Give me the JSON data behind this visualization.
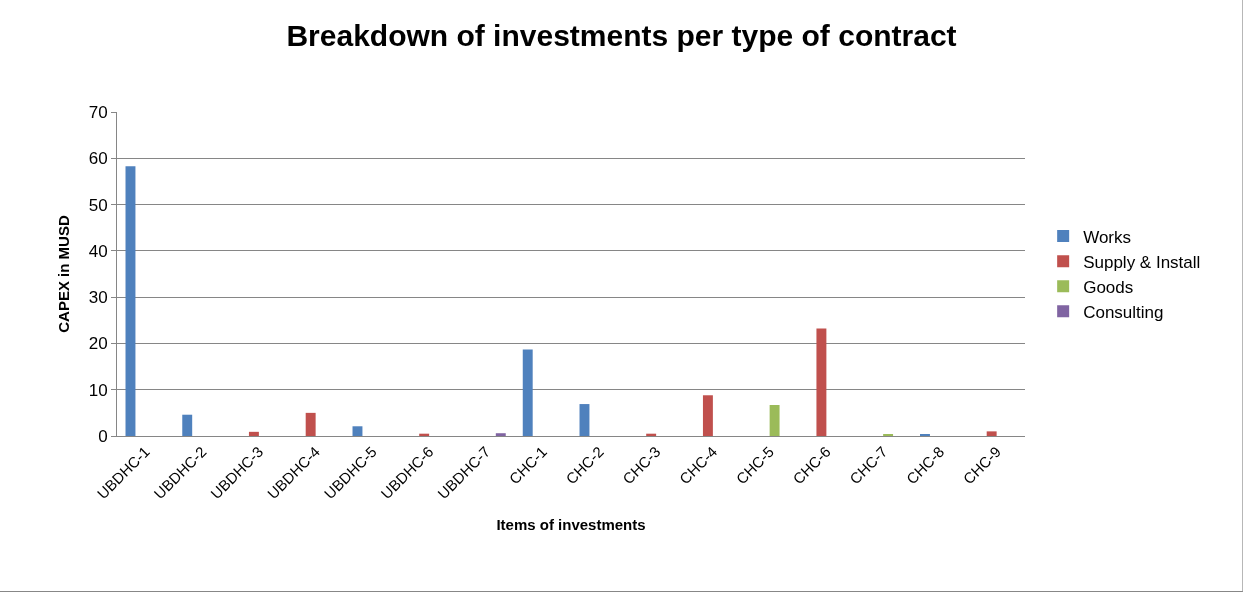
{
  "chart_data": {
    "type": "bar",
    "title": "Breakdown of investments per type of contract",
    "xlabel": "Items of investments",
    "ylabel": "CAPEX in MUSD",
    "categories": [
      "UBDHC-1",
      "UBDHC-2",
      "UBDHC-3",
      "UBDHC-4",
      "UBDHC-5",
      "UBDHC-6",
      "UBDHC-7",
      "CHC-1",
      "CHC-2",
      "CHC-3",
      "CHC-4",
      "CHC-5",
      "CHC-6",
      "CHC-7",
      "CHC-8",
      "CHC-9"
    ],
    "series": [
      {
        "name": "Works",
        "color": "#4f81bd",
        "values": [
          58.3,
          4.6,
          null,
          null,
          2.1,
          null,
          null,
          18.7,
          6.9,
          null,
          null,
          null,
          null,
          null,
          0.3,
          null
        ]
      },
      {
        "name": "Supply & Install",
        "color": "#c0504d",
        "values": [
          null,
          null,
          0.9,
          5.0,
          null,
          0.5,
          null,
          null,
          null,
          0.5,
          8.8,
          null,
          23.2,
          null,
          null,
          1.0
        ]
      },
      {
        "name": "Goods",
        "color": "#9bbb59",
        "values": [
          null,
          null,
          null,
          null,
          null,
          null,
          null,
          null,
          null,
          null,
          null,
          6.7,
          null,
          0.4,
          null,
          null
        ]
      },
      {
        "name": "Consulting",
        "color": "#8064a2",
        "values": [
          null,
          null,
          null,
          null,
          null,
          null,
          0.6,
          null,
          null,
          null,
          null,
          null,
          null,
          null,
          null,
          null
        ]
      }
    ],
    "ylim": [
      0,
      70
    ],
    "yticks": [
      0,
      10,
      20,
      30,
      40,
      50,
      60,
      70
    ],
    "grid": "y",
    "legend": "right"
  }
}
